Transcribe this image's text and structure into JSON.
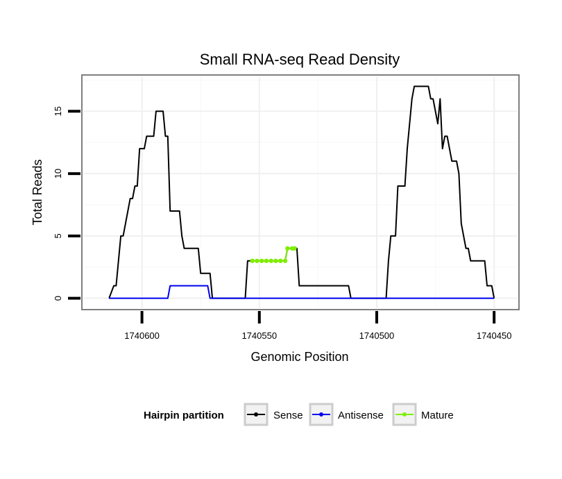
{
  "chart_data": {
    "type": "line",
    "title": "Small RNA-seq Read Density",
    "xlabel": "Genomic Position",
    "ylabel": "Total Reads",
    "xlim": [
      1740625,
      1740440
    ],
    "ylim": [
      -0.8,
      17.8
    ],
    "x_reversed": true,
    "grid": true,
    "xticks": [
      {
        "value": 1740600,
        "label": "1740600"
      },
      {
        "value": 1740550,
        "label": "1740550"
      },
      {
        "value": 1740500,
        "label": "1740500"
      },
      {
        "value": 1740450,
        "label": "1740450"
      }
    ],
    "yticks": [
      {
        "value": 0,
        "label": "0"
      },
      {
        "value": 5,
        "label": "5"
      },
      {
        "value": 10,
        "label": "10"
      },
      {
        "value": 15,
        "label": "15"
      }
    ],
    "legend": {
      "title": "Hairpin partition",
      "position": "bottom",
      "entries": [
        "Sense",
        "Antisense",
        "Mature"
      ]
    },
    "series": [
      {
        "name": "Sense",
        "color": "#000000",
        "points": [
          [
            1740614,
            0
          ],
          [
            1740612,
            1
          ],
          [
            1740611,
            1
          ],
          [
            1740610,
            3
          ],
          [
            1740609,
            5
          ],
          [
            1740608,
            5
          ],
          [
            1740607,
            6
          ],
          [
            1740606,
            7
          ],
          [
            1740605,
            8
          ],
          [
            1740604,
            8
          ],
          [
            1740603,
            9
          ],
          [
            1740602,
            9
          ],
          [
            1740601,
            12
          ],
          [
            1740599,
            12
          ],
          [
            1740598,
            13
          ],
          [
            1740595,
            13
          ],
          [
            1740594,
            15
          ],
          [
            1740591,
            15
          ],
          [
            1740590,
            13
          ],
          [
            1740589,
            13
          ],
          [
            1740588,
            7
          ],
          [
            1740584,
            7
          ],
          [
            1740583,
            5
          ],
          [
            1740582,
            4
          ],
          [
            1740576,
            4
          ],
          [
            1740575,
            2
          ],
          [
            1740571,
            2
          ],
          [
            1740570,
            0
          ],
          [
            1740556,
            0
          ],
          [
            1740555,
            3
          ],
          [
            1740539,
            3
          ],
          [
            1740538,
            4
          ],
          [
            1740534,
            4
          ],
          [
            1740533,
            1
          ],
          [
            1740512,
            1
          ],
          [
            1740511,
            0
          ],
          [
            1740496,
            0
          ],
          [
            1740495,
            3
          ],
          [
            1740494,
            5
          ],
          [
            1740492,
            5
          ],
          [
            1740491,
            9
          ],
          [
            1740488,
            9
          ],
          [
            1740487,
            12
          ],
          [
            1740485,
            16
          ],
          [
            1740484,
            17
          ],
          [
            1740478,
            17
          ],
          [
            1740477,
            16
          ],
          [
            1740476,
            16
          ],
          [
            1740474,
            14
          ],
          [
            1740473,
            16
          ],
          [
            1740472,
            12
          ],
          [
            1740471,
            13
          ],
          [
            1740470,
            13
          ],
          [
            1740468,
            11
          ],
          [
            1740466,
            11
          ],
          [
            1740465,
            10
          ],
          [
            1740464,
            6
          ],
          [
            1740462,
            4
          ],
          [
            1740461,
            4
          ],
          [
            1740460,
            3
          ],
          [
            1740454,
            3
          ],
          [
            1740453,
            1
          ],
          [
            1740451,
            1
          ],
          [
            1740450,
            0
          ]
        ]
      },
      {
        "name": "Antisense",
        "color": "#0000ee",
        "points": [
          [
            1740614,
            0
          ],
          [
            1740589,
            0
          ],
          [
            1740588,
            1
          ],
          [
            1740572,
            1
          ],
          [
            1740571,
            0
          ],
          [
            1740450,
            0
          ]
        ]
      },
      {
        "name": "Mature",
        "color": "#7fee00",
        "points": [
          [
            1740553,
            3
          ],
          [
            1740551,
            3
          ],
          [
            1740549,
            3
          ],
          [
            1740547,
            3
          ],
          [
            1740545,
            3
          ],
          [
            1740543,
            3
          ],
          [
            1740541,
            3
          ],
          [
            1740539,
            3
          ],
          [
            1740538,
            4
          ],
          [
            1740536,
            4
          ],
          [
            1740535,
            4
          ]
        ]
      }
    ]
  }
}
